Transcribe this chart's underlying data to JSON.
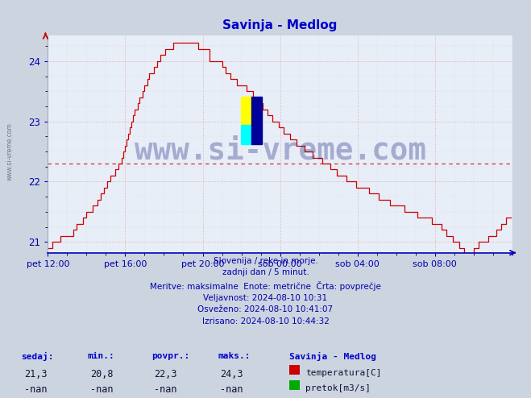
{
  "title": "Savinja - Medlog",
  "title_color": "#0000cc",
  "bg_color": "#ccd4e0",
  "plot_bg_color": "#e8eef8",
  "line_color": "#cc0000",
  "line_width": 1.0,
  "avg_line_value": 22.3,
  "avg_line_color": "#cc0000",
  "ylim": [
    20.82,
    24.42
  ],
  "yticks": [
    21,
    22,
    23,
    24
  ],
  "tick_color": "#0000aa",
  "grid_color": "#dd9999",
  "watermark_text": "www.si-vreme.com",
  "watermark_color": "#1a237e",
  "watermark_alpha": 0.32,
  "info_text": "Slovenija / reke in morje.\nzadnji dan / 5 minut.\nMeritve: maksimalne  Enote: metrične  Črta: povprečje\nVeljavnost: 2024-08-10 10:31\nOsveženo: 2024-08-10 10:41:07\nIzrisano: 2024-08-10 10:44:32",
  "legend_title": "Savinja - Medlog",
  "legend_temp_label": "temperatura[C]",
  "legend_temp_color": "#cc0000",
  "legend_flow_label": "pretok[m3/s]",
  "legend_flow_color": "#00aa00",
  "stats_headers": [
    "sedaj:",
    "min.:",
    "povpr.:",
    "maks.:"
  ],
  "stats_temp": [
    "21,3",
    "20,8",
    "22,3",
    "24,3"
  ],
  "stats_flow": [
    "-nan",
    "-nan",
    "-nan",
    "-nan"
  ],
  "x_tick_labels": [
    "pet 12:00",
    "pet 16:00",
    "pet 20:00",
    "sob 00:00",
    "sob 04:00",
    "sob 08:00"
  ],
  "x_tick_positions": [
    0,
    48,
    96,
    144,
    192,
    240
  ],
  "n_points": 288,
  "side_text": "www.si-vreme.com",
  "axis_arrow_color": "#0000bb",
  "yaxis_arrow_color": "#cc0000"
}
